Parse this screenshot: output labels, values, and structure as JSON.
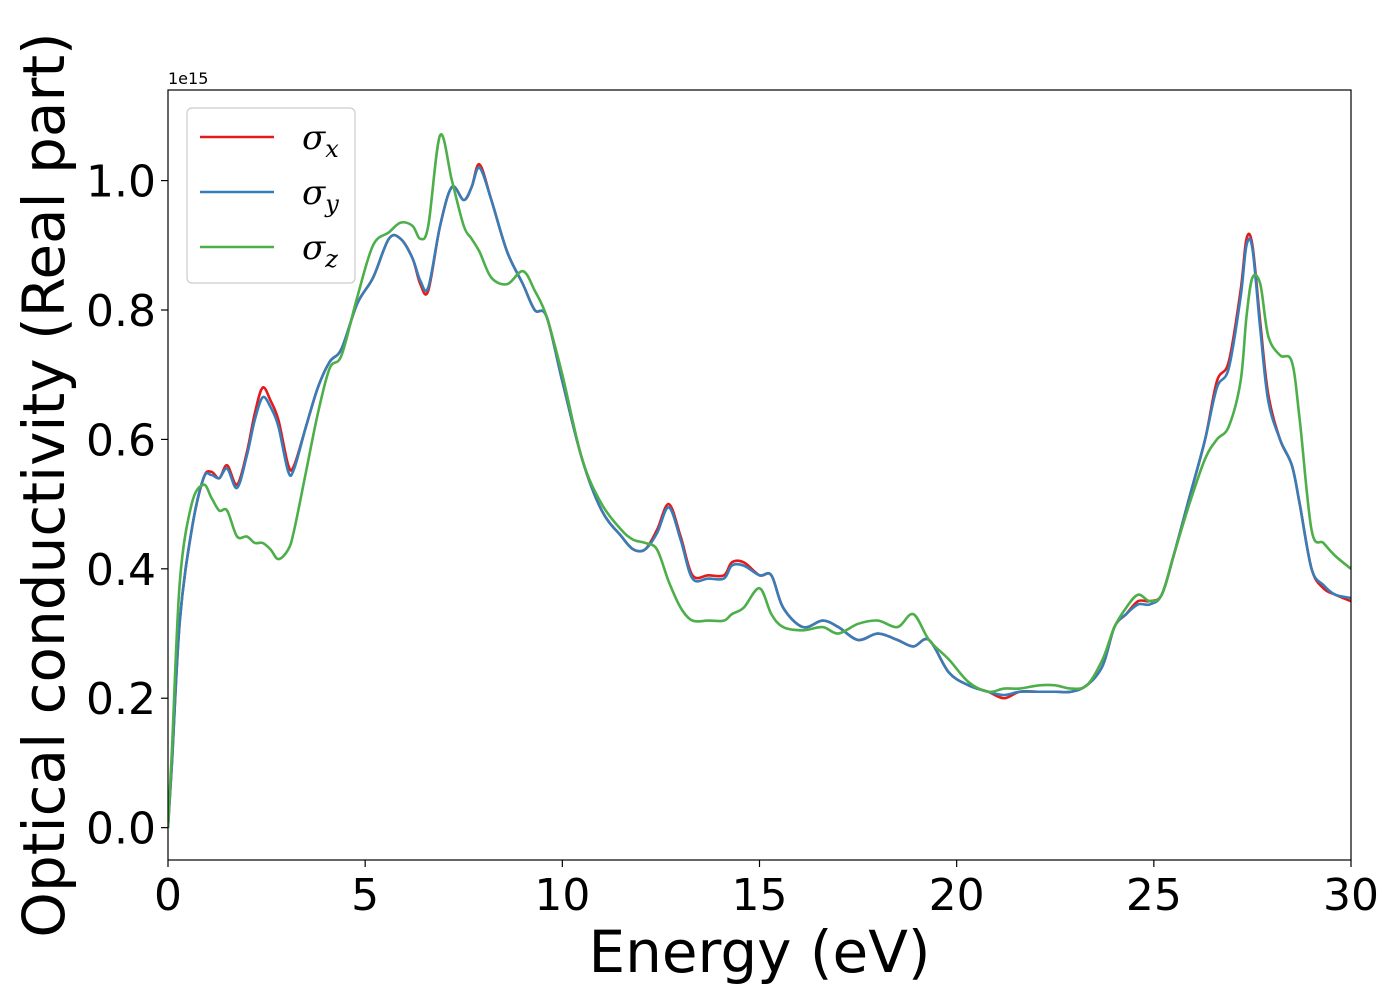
{
  "chart_data": {
    "type": "line",
    "xlabel": "Energy (eV)",
    "ylabel": "Optical conductivity (Real part)",
    "y_offset_text": "1e15",
    "xlim": [
      0,
      30
    ],
    "ylim": [
      -0.05,
      1.14
    ],
    "y_scale_factor": 1000000000000000.0,
    "xticks": [
      0,
      5,
      10,
      15,
      20,
      25,
      30
    ],
    "xtick_labels": [
      "0",
      "5",
      "10",
      "15",
      "20",
      "25",
      "30"
    ],
    "yticks": [
      0.0,
      0.2,
      0.4,
      0.6,
      0.8,
      1.0
    ],
    "ytick_labels": [
      "0.0",
      "0.2",
      "0.4",
      "0.6",
      "0.8",
      "1.0"
    ],
    "grid": false,
    "legend_position": "top-left",
    "series": [
      {
        "name": "σx",
        "legend_base": "σ",
        "legend_sub": "x",
        "color": "#e41a1c",
        "x": [
          0,
          0.1,
          0.3,
          0.6,
          0.9,
          1.1,
          1.3,
          1.5,
          1.75,
          2.0,
          2.2,
          2.4,
          2.6,
          2.8,
          3.05,
          3.2,
          3.5,
          3.8,
          4.1,
          4.4,
          4.8,
          5.2,
          5.6,
          5.9,
          6.2,
          6.4,
          6.6,
          6.9,
          7.2,
          7.5,
          7.7,
          7.9,
          8.2,
          8.6,
          9.0,
          9.3,
          9.6,
          10.0,
          10.5,
          11.0,
          11.5,
          11.8,
          12.1,
          12.4,
          12.7,
          13.0,
          13.3,
          13.7,
          14.1,
          14.3,
          14.6,
          15.0,
          15.3,
          15.6,
          16.1,
          16.6,
          17.0,
          17.5,
          18.0,
          18.5,
          18.9,
          19.3,
          19.8,
          20.3,
          20.8,
          21.2,
          21.6,
          22.1,
          22.5,
          22.9,
          23.3,
          23.7,
          24.0,
          24.3,
          24.6,
          24.9,
          25.2,
          25.5,
          25.9,
          26.3,
          26.6,
          26.9,
          27.2,
          27.35,
          27.5,
          27.7,
          27.9,
          28.2,
          28.5,
          28.7,
          29.0,
          29.3,
          29.6,
          30.0
        ],
        "y": [
          0.0,
          0.1,
          0.32,
          0.46,
          0.54,
          0.55,
          0.54,
          0.56,
          0.53,
          0.58,
          0.64,
          0.68,
          0.66,
          0.63,
          0.56,
          0.56,
          0.62,
          0.68,
          0.72,
          0.74,
          0.81,
          0.85,
          0.91,
          0.91,
          0.88,
          0.84,
          0.83,
          0.93,
          0.99,
          0.97,
          0.99,
          1.025,
          0.97,
          0.89,
          0.84,
          0.8,
          0.79,
          0.69,
          0.57,
          0.49,
          0.45,
          0.43,
          0.43,
          0.46,
          0.5,
          0.45,
          0.39,
          0.39,
          0.39,
          0.41,
          0.41,
          0.39,
          0.39,
          0.34,
          0.31,
          0.32,
          0.31,
          0.29,
          0.3,
          0.29,
          0.28,
          0.29,
          0.24,
          0.22,
          0.21,
          0.2,
          0.21,
          0.21,
          0.21,
          0.21,
          0.22,
          0.25,
          0.31,
          0.33,
          0.35,
          0.35,
          0.36,
          0.42,
          0.51,
          0.6,
          0.69,
          0.72,
          0.83,
          0.91,
          0.9,
          0.78,
          0.67,
          0.6,
          0.56,
          0.5,
          0.4,
          0.37,
          0.36,
          0.35
        ]
      },
      {
        "name": "σy",
        "legend_base": "σ",
        "legend_sub": "y",
        "color": "#377eb8",
        "x": [
          0,
          0.1,
          0.3,
          0.6,
          0.9,
          1.1,
          1.3,
          1.5,
          1.75,
          2.0,
          2.2,
          2.4,
          2.6,
          2.8,
          3.05,
          3.2,
          3.5,
          3.8,
          4.1,
          4.4,
          4.8,
          5.2,
          5.6,
          5.9,
          6.2,
          6.4,
          6.6,
          6.9,
          7.2,
          7.5,
          7.7,
          7.9,
          8.2,
          8.6,
          9.0,
          9.3,
          9.6,
          10.0,
          10.5,
          11.0,
          11.5,
          11.8,
          12.1,
          12.4,
          12.7,
          13.0,
          13.3,
          13.7,
          14.1,
          14.3,
          14.6,
          15.0,
          15.3,
          15.6,
          16.1,
          16.6,
          17.0,
          17.5,
          18.0,
          18.5,
          18.9,
          19.3,
          19.8,
          20.3,
          20.8,
          21.2,
          21.6,
          22.1,
          22.5,
          22.9,
          23.3,
          23.7,
          24.0,
          24.3,
          24.6,
          24.9,
          25.2,
          25.5,
          25.9,
          26.3,
          26.6,
          26.9,
          27.2,
          27.35,
          27.5,
          27.7,
          27.9,
          28.2,
          28.5,
          28.7,
          29.0,
          29.3,
          29.6,
          30.0
        ],
        "y": [
          0.0,
          0.1,
          0.32,
          0.46,
          0.54,
          0.545,
          0.54,
          0.555,
          0.525,
          0.575,
          0.63,
          0.665,
          0.65,
          0.62,
          0.55,
          0.555,
          0.62,
          0.68,
          0.72,
          0.74,
          0.81,
          0.85,
          0.91,
          0.91,
          0.88,
          0.845,
          0.835,
          0.93,
          0.99,
          0.97,
          0.99,
          1.02,
          0.97,
          0.89,
          0.84,
          0.8,
          0.79,
          0.69,
          0.57,
          0.49,
          0.45,
          0.43,
          0.43,
          0.455,
          0.495,
          0.445,
          0.385,
          0.385,
          0.385,
          0.405,
          0.405,
          0.39,
          0.39,
          0.34,
          0.31,
          0.32,
          0.31,
          0.29,
          0.3,
          0.29,
          0.28,
          0.29,
          0.24,
          0.22,
          0.21,
          0.205,
          0.21,
          0.21,
          0.21,
          0.21,
          0.22,
          0.25,
          0.31,
          0.33,
          0.345,
          0.345,
          0.36,
          0.42,
          0.51,
          0.6,
          0.68,
          0.71,
          0.82,
          0.9,
          0.895,
          0.77,
          0.66,
          0.6,
          0.56,
          0.5,
          0.4,
          0.375,
          0.36,
          0.355
        ]
      },
      {
        "name": "σz",
        "legend_base": "σ",
        "legend_sub": "z",
        "color": "#4daf4a",
        "x": [
          0,
          0.1,
          0.3,
          0.6,
          0.9,
          1.1,
          1.3,
          1.5,
          1.75,
          2.0,
          2.2,
          2.4,
          2.6,
          2.8,
          3.05,
          3.2,
          3.5,
          3.8,
          4.1,
          4.4,
          4.8,
          5.2,
          5.6,
          5.9,
          6.2,
          6.4,
          6.6,
          6.9,
          7.2,
          7.5,
          7.7,
          7.9,
          8.2,
          8.6,
          9.0,
          9.3,
          9.6,
          10.0,
          10.5,
          11.0,
          11.5,
          11.8,
          12.1,
          12.4,
          12.7,
          13.0,
          13.3,
          13.7,
          14.1,
          14.3,
          14.6,
          15.0,
          15.3,
          15.6,
          16.1,
          16.6,
          17.0,
          17.5,
          18.0,
          18.5,
          18.9,
          19.3,
          19.8,
          20.3,
          20.8,
          21.2,
          21.6,
          22.1,
          22.5,
          22.9,
          23.3,
          23.7,
          24.0,
          24.3,
          24.6,
          24.9,
          25.2,
          25.5,
          25.9,
          26.3,
          26.6,
          26.9,
          27.2,
          27.35,
          27.5,
          27.7,
          27.9,
          28.2,
          28.5,
          28.7,
          29.0,
          29.3,
          29.6,
          30.0
        ],
        "y": [
          0.0,
          0.12,
          0.38,
          0.5,
          0.53,
          0.51,
          0.49,
          0.49,
          0.45,
          0.45,
          0.44,
          0.44,
          0.43,
          0.415,
          0.43,
          0.46,
          0.55,
          0.64,
          0.71,
          0.73,
          0.82,
          0.9,
          0.92,
          0.935,
          0.93,
          0.91,
          0.93,
          1.07,
          1.0,
          0.93,
          0.91,
          0.89,
          0.85,
          0.84,
          0.86,
          0.83,
          0.79,
          0.7,
          0.57,
          0.5,
          0.46,
          0.445,
          0.44,
          0.43,
          0.38,
          0.34,
          0.32,
          0.32,
          0.32,
          0.33,
          0.34,
          0.37,
          0.33,
          0.31,
          0.305,
          0.31,
          0.3,
          0.315,
          0.32,
          0.31,
          0.33,
          0.29,
          0.26,
          0.225,
          0.21,
          0.215,
          0.215,
          0.22,
          0.22,
          0.215,
          0.22,
          0.26,
          0.31,
          0.34,
          0.36,
          0.35,
          0.36,
          0.42,
          0.5,
          0.57,
          0.6,
          0.62,
          0.69,
          0.79,
          0.85,
          0.84,
          0.76,
          0.73,
          0.72,
          0.63,
          0.46,
          0.44,
          0.42,
          0.4
        ]
      }
    ]
  }
}
